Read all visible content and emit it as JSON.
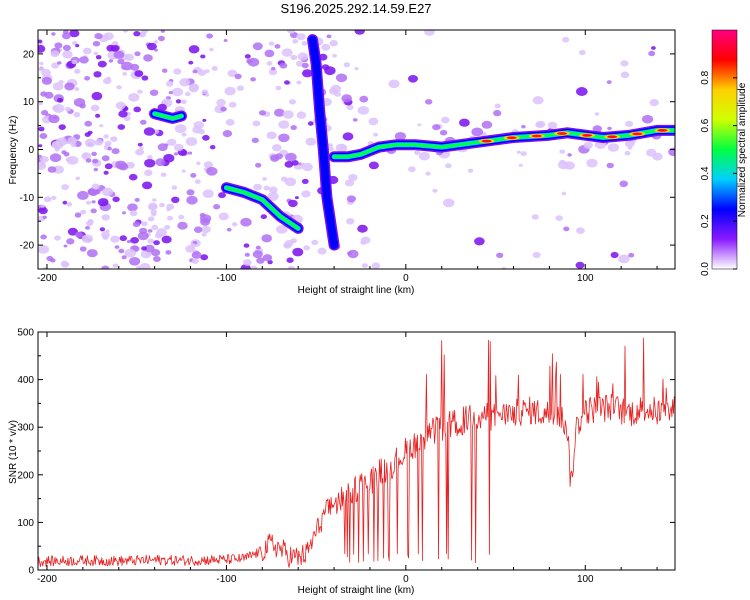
{
  "title": "S196.2025.292.14.59.E27",
  "chart_data": [
    {
      "type": "heatmap",
      "xlabel": "Height of straight line (km)",
      "ylabel": "Frequency (Hz)",
      "xlim": [
        -205,
        150
      ],
      "ylim": [
        -25,
        25
      ],
      "xticks": [
        -200,
        -100,
        0,
        100
      ],
      "xtick_labels": [
        "-200",
        "-100",
        "0",
        "100"
      ],
      "yticks": [
        -20,
        -10,
        0,
        10,
        20
      ],
      "ytick_labels": [
        "-20",
        "-10",
        "0",
        "10",
        "20"
      ],
      "colorbar": {
        "label": "Normalized spectral amplitude",
        "range": [
          0,
          1
        ],
        "ticks": [
          0,
          0.2,
          0.4,
          0.6,
          0.8
        ],
        "tick_labels": [
          "0.0",
          "0.2",
          "0.4",
          "0.6",
          "0.8"
        ],
        "colors": [
          "#ffffff",
          "#8a1aff",
          "#0000ff",
          "#00d0ff",
          "#00ff40",
          "#d0ff00",
          "#ffd000",
          "#ff0000",
          "#ff0080"
        ]
      },
      "ridges": [
        {
          "name": "main-trace",
          "points": [
            [
              -40,
              -1.5
            ],
            [
              -32,
              -1.5
            ],
            [
              -25,
              -1
            ],
            [
              -15,
              0.5
            ],
            [
              -5,
              1
            ],
            [
              5,
              1
            ],
            [
              20,
              0.5
            ],
            [
              40,
              1.5
            ],
            [
              60,
              2.5
            ],
            [
              80,
              3
            ],
            [
              90,
              3.5
            ],
            [
              110,
              2.5
            ],
            [
              125,
              3
            ],
            [
              140,
              4
            ],
            [
              150,
              4
            ]
          ]
        },
        {
          "name": "lower-branch",
          "points": [
            [
              -100,
              -8
            ],
            [
              -90,
              -9
            ],
            [
              -80,
              -10.5
            ],
            [
              -70,
              -14
            ],
            [
              -60,
              -16.5
            ]
          ]
        },
        {
          "name": "upper-patch",
          "points": [
            [
              -140,
              7.5
            ],
            [
              -130,
              6.5
            ],
            [
              -125,
              7
            ]
          ]
        },
        {
          "name": "vertical-band",
          "points": [
            [
              -52,
              23
            ],
            [
              -50,
              18
            ],
            [
              -48,
              8
            ],
            [
              -46,
              0
            ],
            [
              -44,
              -10
            ],
            [
              -40,
              -20
            ]
          ]
        }
      ]
    },
    {
      "type": "line",
      "xlabel": "Height of straight line (km)",
      "ylabel": "SNR (10 * v/v)",
      "xlim": [
        -205,
        150
      ],
      "ylim": [
        0,
        500
      ],
      "xticks": [
        -200,
        -100,
        0,
        100
      ],
      "xtick_labels": [
        "-200",
        "-100",
        "0",
        "100"
      ],
      "yticks": [
        0,
        100,
        200,
        300,
        400,
        500
      ],
      "ytick_labels": [
        "0",
        "100",
        "200",
        "300",
        "400",
        "500"
      ],
      "color": "#e82020",
      "series": [
        {
          "name": "SNR",
          "x": [
            -205,
            -180,
            -160,
            -140,
            -120,
            -100,
            -90,
            -80,
            -75,
            -70,
            -65,
            -60,
            -55,
            -50,
            -45,
            -40,
            -35,
            -30,
            -25,
            -20,
            -15,
            -10,
            -5,
            0,
            5,
            10,
            15,
            20,
            25,
            30,
            35,
            40,
            45,
            50,
            55,
            60,
            65,
            70,
            75,
            80,
            85,
            90,
            92,
            95,
            100,
            105,
            110,
            115,
            120,
            125,
            130,
            135,
            140,
            145,
            150
          ],
          "values": [
            18,
            20,
            19,
            21,
            20,
            22,
            24,
            40,
            55,
            45,
            30,
            25,
            35,
            80,
            120,
            140,
            150,
            165,
            180,
            185,
            205,
            215,
            230,
            250,
            265,
            275,
            290,
            300,
            305,
            310,
            318,
            322,
            325,
            320,
            325,
            330,
            332,
            335,
            330,
            328,
            330,
            300,
            175,
            300,
            335,
            338,
            340,
            342,
            335,
            330,
            336,
            340,
            332,
            330,
            338
          ]
        }
      ]
    }
  ]
}
